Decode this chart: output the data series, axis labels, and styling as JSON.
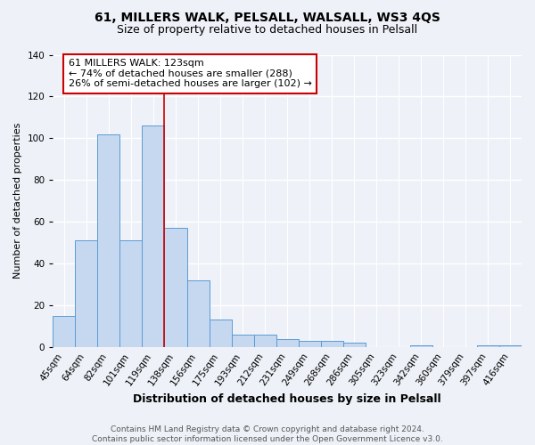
{
  "title1": "61, MILLERS WALK, PELSALL, WALSALL, WS3 4QS",
  "title2": "Size of property relative to detached houses in Pelsall",
  "xlabel": "Distribution of detached houses by size in Pelsall",
  "ylabel": "Number of detached properties",
  "categories": [
    "45sqm",
    "64sqm",
    "82sqm",
    "101sqm",
    "119sqm",
    "138sqm",
    "156sqm",
    "175sqm",
    "193sqm",
    "212sqm",
    "231sqm",
    "249sqm",
    "268sqm",
    "286sqm",
    "305sqm",
    "323sqm",
    "342sqm",
    "360sqm",
    "379sqm",
    "397sqm",
    "416sqm"
  ],
  "values": [
    15,
    51,
    102,
    51,
    106,
    57,
    32,
    13,
    6,
    6,
    4,
    3,
    3,
    2,
    0,
    0,
    1,
    0,
    0,
    1,
    1
  ],
  "bar_color": "#c5d8f0",
  "bar_edge_color": "#5b9bd5",
  "ylim": [
    0,
    140
  ],
  "yticks": [
    0,
    20,
    40,
    60,
    80,
    100,
    120,
    140
  ],
  "property_line_x": 4.5,
  "annotation_line1": "61 MILLERS WALK: 123sqm",
  "annotation_line2": "← 74% of detached houses are smaller (288)",
  "annotation_line3": "26% of semi-detached houses are larger (102) →",
  "annotation_box_color": "#ffffff",
  "annotation_box_edge": "#cc0000",
  "red_line_color": "#cc0000",
  "footnote": "Contains HM Land Registry data © Crown copyright and database right 2024.\nContains public sector information licensed under the Open Government Licence v3.0.",
  "background_color": "#eef2f8",
  "grid_color": "#ffffff",
  "title1_fontsize": 10,
  "title2_fontsize": 9,
  "xlabel_fontsize": 9,
  "ylabel_fontsize": 8,
  "annotation_fontsize": 8,
  "tick_fontsize": 7.5,
  "footnote_fontsize": 6.5
}
